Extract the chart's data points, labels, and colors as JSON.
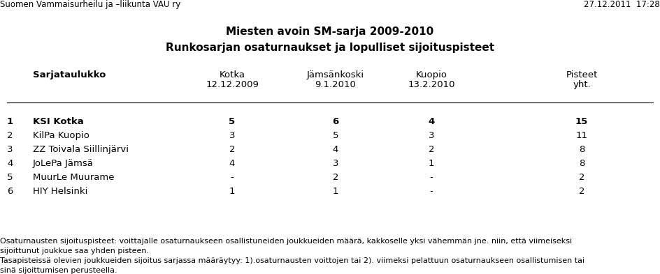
{
  "title1": "Miesten avoin SM-sarja 2009-2010",
  "title2": "Runkosarjan osaturnaukset ja lopulliset sijoituspisteet",
  "header_left": "Suomen Vammaisurheilu ja –liikunta VAU ry",
  "header_right": "27.12.2011  17:28",
  "col_headers_line1": [
    "Sarjataulukko",
    "Kotka",
    "Jämsänkoski",
    "Kuopio",
    "Pisteet"
  ],
  "col_headers_line2": [
    "",
    "12.12.2009",
    "9.1.2010",
    "13.2.2010",
    "yht."
  ],
  "rows": [
    [
      "1",
      "KSI Kotka",
      "5",
      "6",
      "4",
      "15"
    ],
    [
      "2",
      "KilPa Kuopio",
      "3",
      "5",
      "3",
      "11"
    ],
    [
      "3",
      "ZZ Toivala Siillinjärvi",
      "2",
      "4",
      "2",
      "8"
    ],
    [
      "4",
      "JoLePa Jämsä",
      "4",
      "3",
      "1",
      "8"
    ],
    [
      "5",
      "MuurLe Muurame",
      "-",
      "2",
      "-",
      "2"
    ],
    [
      "6",
      "HIY Helsinki",
      "1",
      "1",
      "-",
      "2"
    ]
  ],
  "footnote1": "Osaturnausten sijoituspisteet: voittajalle osaturnaukseen osallistuneiden joukkueiden määrä, kakkoselle yksi vähemmän jne. niin, että viimeiseksi",
  "footnote2": "sijoittunut joukkue saa yhden pisteen.",
  "footnote3": "Tasapisteissä olevien joukkueiden sijoitus sarjassa määräytyy: 1).osaturnausten voittojen tai 2). viimeksi pelattuun osaturnaukseen osallistumisen tai",
  "footnote4": "sinä sijoittumisen perusteella.",
  "bg_color": "#ffffff",
  "text_color": "#000000"
}
